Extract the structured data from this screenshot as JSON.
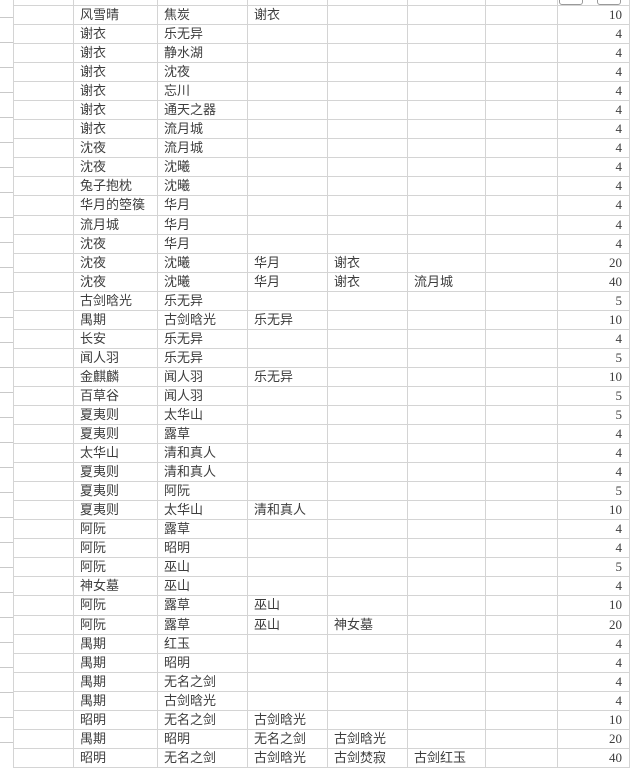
{
  "app": {
    "type": "spreadsheet-grid",
    "colors": {
      "grid_line": "#d4d4d4",
      "text": "#3d3d3d",
      "background": "#ffffff",
      "button_outline": "#9a9a9a"
    }
  },
  "chrome": {
    "top_right_button_fragments": 2
  },
  "grid": {
    "text_columns": 5,
    "quantity_column_index": 5,
    "rows": [
      [
        "风雪晴",
        "焦炭",
        "谢衣",
        "",
        "",
        10
      ],
      [
        "谢衣",
        "乐无异",
        "",
        "",
        "",
        4
      ],
      [
        "谢衣",
        "静水湖",
        "",
        "",
        "",
        4
      ],
      [
        "谢衣",
        "沈夜",
        "",
        "",
        "",
        4
      ],
      [
        "谢衣",
        "忘川",
        "",
        "",
        "",
        4
      ],
      [
        "谢衣",
        "通天之器",
        "",
        "",
        "",
        4
      ],
      [
        "谢衣",
        "流月城",
        "",
        "",
        "",
        4
      ],
      [
        "沈夜",
        "流月城",
        "",
        "",
        "",
        4
      ],
      [
        "沈夜",
        "沈曦",
        "",
        "",
        "",
        4
      ],
      [
        "兔子抱枕",
        "沈曦",
        "",
        "",
        "",
        4
      ],
      [
        "华月的箜篌",
        "华月",
        "",
        "",
        "",
        4
      ],
      [
        "流月城",
        "华月",
        "",
        "",
        "",
        4
      ],
      [
        "沈夜",
        "华月",
        "",
        "",
        "",
        4
      ],
      [
        "沈夜",
        "沈曦",
        "华月",
        "谢衣",
        "",
        20
      ],
      [
        "沈夜",
        "沈曦",
        "华月",
        "谢衣",
        "流月城",
        40
      ],
      [
        "古剑晗光",
        "乐无异",
        "",
        "",
        "",
        5
      ],
      [
        "禺期",
        "古剑晗光",
        "乐无异",
        "",
        "",
        10
      ],
      [
        "长安",
        "乐无异",
        "",
        "",
        "",
        4
      ],
      [
        "闻人羽",
        "乐无异",
        "",
        "",
        "",
        5
      ],
      [
        "金麒麟",
        "闻人羽",
        "乐无异",
        "",
        "",
        10
      ],
      [
        "百草谷",
        "闻人羽",
        "",
        "",
        "",
        5
      ],
      [
        "夏夷则",
        "太华山",
        "",
        "",
        "",
        5
      ],
      [
        "夏夷则",
        "露草",
        "",
        "",
        "",
        4
      ],
      [
        "太华山",
        "清和真人",
        "",
        "",
        "",
        4
      ],
      [
        "夏夷则",
        "清和真人",
        "",
        "",
        "",
        4
      ],
      [
        "夏夷则",
        "阿阮",
        "",
        "",
        "",
        5
      ],
      [
        "夏夷则",
        "太华山",
        "清和真人",
        "",
        "",
        10
      ],
      [
        "阿阮",
        "露草",
        "",
        "",
        "",
        4
      ],
      [
        "阿阮",
        "昭明",
        "",
        "",
        "",
        4
      ],
      [
        "阿阮",
        "巫山",
        "",
        "",
        "",
        5
      ],
      [
        "神女墓",
        "巫山",
        "",
        "",
        "",
        4
      ],
      [
        "阿阮",
        "露草",
        "巫山",
        "",
        "",
        10
      ],
      [
        "阿阮",
        "露草",
        "巫山",
        "神女墓",
        "",
        20
      ],
      [
        "禺期",
        "红玉",
        "",
        "",
        "",
        4
      ],
      [
        "禺期",
        "昭明",
        "",
        "",
        "",
        4
      ],
      [
        "禺期",
        "无名之剑",
        "",
        "",
        "",
        4
      ],
      [
        "禺期",
        "古剑晗光",
        "",
        "",
        "",
        4
      ],
      [
        "昭明",
        "无名之剑",
        "古剑晗光",
        "",
        "",
        10
      ],
      [
        "禺期",
        "昭明",
        "无名之剑",
        "古剑晗光",
        "",
        20
      ],
      [
        "昭明",
        "无名之剑",
        "古剑晗光",
        "古剑焚寂",
        "古剑红玉",
        40
      ]
    ]
  }
}
